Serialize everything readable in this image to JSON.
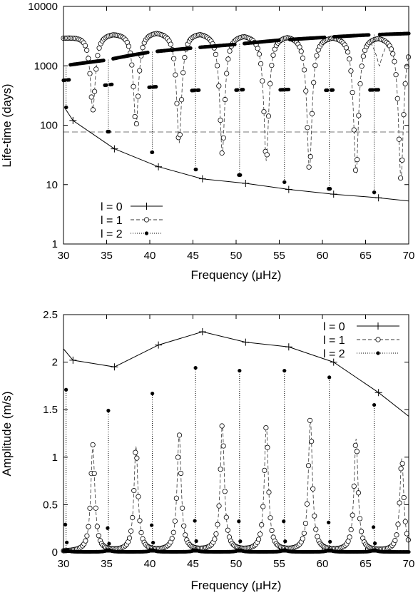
{
  "chart_data": [
    {
      "type": "line",
      "xlabel": "Frequency (μHz)",
      "ylabel": "Life-time (days)",
      "xlim": [
        30,
        70
      ],
      "ylim": [
        1,
        10000
      ],
      "y_scale": "log",
      "x_ticks": [
        "30",
        "35",
        "40",
        "45",
        "50",
        "55",
        "60",
        "65",
        "70"
      ],
      "y_ticks": [
        "1",
        "10",
        "100",
        "1000",
        "10000"
      ],
      "legend_position": "bottom-left",
      "reference_line": {
        "y": 77,
        "style": "dashed"
      },
      "series": [
        {
          "name": "l = 0",
          "marker": "plus",
          "line": "solid",
          "x": [
            30.1,
            31.1,
            35.9,
            41.0,
            46.1,
            51.1,
            56.1,
            61.3,
            66.5,
            70.0
          ],
          "y": [
            200,
            120,
            40,
            20,
            12.5,
            10.5,
            8.3,
            6.9,
            6.0,
            5.3
          ]
        },
        {
          "name": "l = 1",
          "marker": "open-circle",
          "line": "dashed",
          "baseline_low": [
            3000,
            3000,
            3500,
            3800,
            3900,
            3400,
            3300,
            3200,
            3100
          ],
          "baseline_high": [
            3600,
            3800,
            3900,
            4000,
            3900,
            3400,
            3300,
            3200,
            3100
          ],
          "dips": [
            {
              "x": 33.4,
              "min": 180
            },
            {
              "x": 38.4,
              "min": 95
            },
            {
              "x": 43.4,
              "min": 50
            },
            {
              "x": 48.4,
              "min": 32
            },
            {
              "x": 53.5,
              "min": 25
            },
            {
              "x": 58.5,
              "min": 17
            },
            {
              "x": 63.9,
              "min": 15
            },
            {
              "x": 69.1,
              "min": 12
            }
          ],
          "peak_near": [
            {
              "x": 66.6,
              "y": 950
            }
          ]
        },
        {
          "name": "l = 2",
          "marker": "filled-circle",
          "line": "dotted",
          "baseline": [
            [
              30.0,
              1000
            ],
            [
              35.0,
              1250
            ],
            [
              40.0,
              1700
            ],
            [
              45.0,
              2000
            ],
            [
              50.0,
              2300
            ],
            [
              55.0,
              2700
            ],
            [
              60.0,
              3000
            ],
            [
              65.0,
              3300
            ],
            [
              70.0,
              3500
            ]
          ],
          "dips": [
            {
              "x": 30.3,
              "min": 200
            },
            {
              "x": 35.2,
              "min": 78
            },
            {
              "x": 40.3,
              "min": 35
            },
            {
              "x": 45.3,
              "min": 18
            },
            {
              "x": 50.4,
              "min": 14.5
            },
            {
              "x": 55.6,
              "min": 11
            },
            {
              "x": 60.8,
              "min": 8.5
            },
            {
              "x": 66.0,
              "min": 7.4
            }
          ]
        }
      ]
    },
    {
      "type": "line",
      "xlabel": "Frequency (μHz)",
      "ylabel": "Amplitude (m/s)",
      "xlim": [
        30,
        70
      ],
      "ylim": [
        0,
        2.5
      ],
      "x_ticks": [
        "30",
        "35",
        "40",
        "45",
        "50",
        "55",
        "60",
        "65",
        "70"
      ],
      "y_ticks": [
        "0",
        "0.5",
        "1",
        "1.5",
        "2",
        "2.5"
      ],
      "legend_position": "top-right",
      "series": [
        {
          "name": "l = 0",
          "marker": "plus",
          "line": "solid",
          "x": [
            30.0,
            31.1,
            35.9,
            41.0,
            46.1,
            51.1,
            56.1,
            61.3,
            66.5,
            70.0
          ],
          "y": [
            2.14,
            2.02,
            1.95,
            2.18,
            2.32,
            2.21,
            2.16,
            2.0,
            1.68,
            1.43
          ]
        },
        {
          "name": "l = 1",
          "marker": "open-circle",
          "line": "dashed",
          "peaks": [
            {
              "x": 33.4,
              "y": 1.12
            },
            {
              "x": 38.4,
              "y": 1.1
            },
            {
              "x": 43.4,
              "y": 1.23
            },
            {
              "x": 48.4,
              "y": 1.34
            },
            {
              "x": 53.5,
              "y": 1.32
            },
            {
              "x": 58.6,
              "y": 1.4
            },
            {
              "x": 63.9,
              "y": 1.18
            },
            {
              "x": 69.2,
              "y": 0.98
            }
          ]
        },
        {
          "name": "l = 2",
          "marker": "filled-circle",
          "line": "dotted",
          "peaks": [
            {
              "x": 30.3,
              "y": 1.71
            },
            {
              "x": 35.2,
              "y": 1.49
            },
            {
              "x": 40.3,
              "y": 1.67
            },
            {
              "x": 45.3,
              "y": 1.94
            },
            {
              "x": 50.4,
              "y": 1.91
            },
            {
              "x": 55.6,
              "y": 1.91
            },
            {
              "x": 60.8,
              "y": 1.84
            },
            {
              "x": 66.0,
              "y": 1.55
            }
          ]
        }
      ]
    }
  ]
}
